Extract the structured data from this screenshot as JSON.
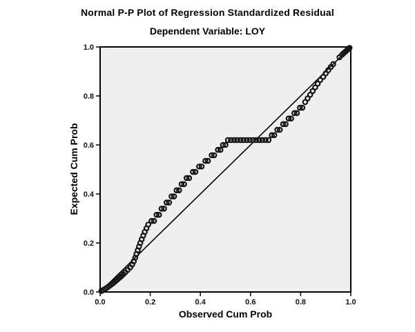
{
  "chart_data": {
    "type": "scatter",
    "title": "Normal P-P Plot of Regression Standardized Residual",
    "subtitle": "Dependent Variable: LOY",
    "xlabel": "Observed Cum Prob",
    "ylabel": "Expected Cum Prob",
    "xlim": [
      0.0,
      1.0
    ],
    "ylim": [
      0.0,
      1.0
    ],
    "xticks": [
      0.0,
      0.2,
      0.4,
      0.6,
      0.8,
      1.0
    ],
    "xtick_labels": [
      "0.0",
      "0.2",
      "0.4",
      "0.6",
      "0.8",
      "1.0"
    ],
    "yticks": [
      0.0,
      0.2,
      0.4,
      0.6,
      0.8,
      1.0
    ],
    "ytick_labels": [
      "0.0",
      "0.2",
      "0.4",
      "0.6",
      "0.8",
      "1.0"
    ],
    "grid": false,
    "legend": "none",
    "plot_background": "#f0efed",
    "frame_color": "#000000",
    "marker": {
      "shape": "open-circle",
      "color": "#141414"
    },
    "reference_line": {
      "type": "identity",
      "from": [
        0.0,
        0.0
      ],
      "to": [
        1.0,
        1.0
      ],
      "color": "#000000"
    },
    "series": [
      {
        "name": "Expected vs Observed cumulative probability",
        "points": [
          [
            0.005,
            0.004
          ],
          [
            0.012,
            0.008
          ],
          [
            0.02,
            0.013
          ],
          [
            0.028,
            0.018
          ],
          [
            0.036,
            0.024
          ],
          [
            0.044,
            0.03
          ],
          [
            0.052,
            0.036
          ],
          [
            0.06,
            0.043
          ],
          [
            0.068,
            0.05
          ],
          [
            0.076,
            0.057
          ],
          [
            0.084,
            0.064
          ],
          [
            0.092,
            0.072
          ],
          [
            0.1,
            0.08
          ],
          [
            0.11,
            0.09
          ],
          [
            0.12,
            0.1
          ],
          [
            0.128,
            0.112
          ],
          [
            0.134,
            0.125
          ],
          [
            0.14,
            0.14
          ],
          [
            0.145,
            0.155
          ],
          [
            0.15,
            0.17
          ],
          [
            0.155,
            0.185
          ],
          [
            0.16,
            0.2
          ],
          [
            0.166,
            0.215
          ],
          [
            0.172,
            0.23
          ],
          [
            0.178,
            0.245
          ],
          [
            0.185,
            0.26
          ],
          [
            0.192,
            0.275
          ],
          [
            0.205,
            0.29
          ],
          [
            0.215,
            0.29
          ],
          [
            0.225,
            0.315
          ],
          [
            0.235,
            0.315
          ],
          [
            0.245,
            0.34
          ],
          [
            0.255,
            0.34
          ],
          [
            0.265,
            0.365
          ],
          [
            0.275,
            0.365
          ],
          [
            0.285,
            0.39
          ],
          [
            0.295,
            0.39
          ],
          [
            0.305,
            0.415
          ],
          [
            0.315,
            0.415
          ],
          [
            0.325,
            0.44
          ],
          [
            0.335,
            0.44
          ],
          [
            0.345,
            0.465
          ],
          [
            0.355,
            0.465
          ],
          [
            0.37,
            0.49
          ],
          [
            0.38,
            0.49
          ],
          [
            0.395,
            0.512
          ],
          [
            0.405,
            0.512
          ],
          [
            0.42,
            0.535
          ],
          [
            0.43,
            0.535
          ],
          [
            0.445,
            0.558
          ],
          [
            0.455,
            0.558
          ],
          [
            0.47,
            0.58
          ],
          [
            0.48,
            0.58
          ],
          [
            0.49,
            0.6
          ],
          [
            0.5,
            0.6
          ],
          [
            0.51,
            0.62
          ],
          [
            0.522,
            0.62
          ],
          [
            0.535,
            0.62
          ],
          [
            0.547,
            0.62
          ],
          [
            0.56,
            0.62
          ],
          [
            0.572,
            0.62
          ],
          [
            0.585,
            0.62
          ],
          [
            0.597,
            0.62
          ],
          [
            0.61,
            0.62
          ],
          [
            0.622,
            0.62
          ],
          [
            0.635,
            0.62
          ],
          [
            0.647,
            0.62
          ],
          [
            0.66,
            0.62
          ],
          [
            0.672,
            0.62
          ],
          [
            0.685,
            0.64
          ],
          [
            0.695,
            0.64
          ],
          [
            0.707,
            0.662
          ],
          [
            0.717,
            0.662
          ],
          [
            0.73,
            0.685
          ],
          [
            0.74,
            0.685
          ],
          [
            0.752,
            0.708
          ],
          [
            0.762,
            0.708
          ],
          [
            0.775,
            0.73
          ],
          [
            0.785,
            0.73
          ],
          [
            0.797,
            0.752
          ],
          [
            0.807,
            0.752
          ],
          [
            0.818,
            0.775
          ],
          [
            0.828,
            0.79
          ],
          [
            0.838,
            0.805
          ],
          [
            0.848,
            0.82
          ],
          [
            0.858,
            0.835
          ],
          [
            0.868,
            0.85
          ],
          [
            0.878,
            0.865
          ],
          [
            0.89,
            0.878
          ],
          [
            0.9,
            0.892
          ],
          [
            0.91,
            0.905
          ],
          [
            0.92,
            0.918
          ],
          [
            0.93,
            0.93
          ],
          [
            0.955,
            0.958
          ],
          [
            0.965,
            0.968
          ],
          [
            0.972,
            0.975
          ],
          [
            0.98,
            0.982
          ],
          [
            0.988,
            0.99
          ],
          [
            0.995,
            0.996
          ]
        ]
      }
    ]
  }
}
